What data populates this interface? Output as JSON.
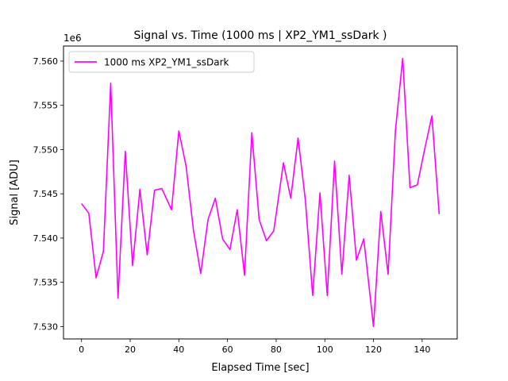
{
  "chart_data": {
    "type": "line",
    "title": "Signal vs. Time (1000 ms | XP2_YM1_ssDark )",
    "xlabel": "Elapsed Time [sec]",
    "ylabel": "Signal [ADU]",
    "y_offset_label": "1e6",
    "xlim": [
      -7.4,
      154.4
    ],
    "ylim": [
      7.5286,
      7.5617
    ],
    "x_ticks": [
      0,
      20,
      40,
      60,
      80,
      100,
      120,
      140
    ],
    "x_tick_labels": [
      "0",
      "20",
      "40",
      "60",
      "80",
      "100",
      "120",
      "140"
    ],
    "y_ticks": [
      7.53,
      7.535,
      7.54,
      7.545,
      7.55,
      7.555,
      7.56
    ],
    "y_tick_labels": [
      "7.530",
      "7.535",
      "7.540",
      "7.545",
      "7.550",
      "7.555",
      "7.560"
    ],
    "grid": false,
    "legend_position": "top-left",
    "series": [
      {
        "name": "1000 ms XP2_YM1_ssDark",
        "color": "#ff00ff",
        "x": [
          0,
          3,
          6,
          9,
          12,
          15,
          18,
          21,
          24,
          27,
          30,
          33,
          37,
          40,
          43,
          46,
          49,
          52,
          55,
          58,
          61,
          64,
          67,
          70,
          73,
          76,
          79,
          83,
          86,
          89,
          92,
          95,
          98,
          101,
          104,
          107,
          110,
          113,
          116,
          120,
          123,
          126,
          129,
          132,
          135,
          138,
          141,
          144,
          147
        ],
        "y": [
          7.5439,
          7.5428,
          7.5355,
          7.5385,
          7.5575,
          7.5332,
          7.5498,
          7.5369,
          7.5455,
          7.5381,
          7.5454,
          7.5456,
          7.5432,
          7.5521,
          7.5481,
          7.5409,
          7.536,
          7.5421,
          7.5445,
          7.5399,
          7.5387,
          7.5432,
          7.5358,
          7.5519,
          7.5421,
          7.5397,
          7.5408,
          7.5485,
          7.5445,
          7.5513,
          7.5443,
          7.5335,
          7.5451,
          7.5335,
          7.5487,
          7.5359,
          7.5471,
          7.5375,
          7.5399,
          7.53,
          7.543,
          7.5359,
          7.5521,
          7.5603,
          7.5457,
          7.546,
          7.55,
          7.5538,
          7.5427
        ]
      }
    ]
  }
}
